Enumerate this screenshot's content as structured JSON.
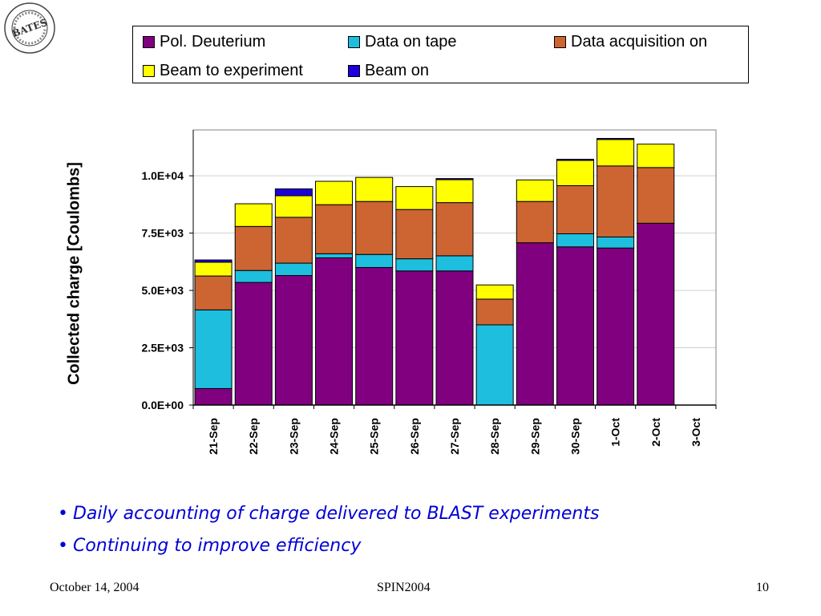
{
  "slide": {
    "footer_left": "October 14, 2004",
    "footer_center": "SPIN2004",
    "footer_right": "10"
  },
  "logo": {
    "icon": "bates-laboratory-seal-icon",
    "text": "LINEAR ACCELERATOR CENTER · BATES · MIDDLETON, MA"
  },
  "bullets": [
    {
      "text": "Daily accounting of charge delivered to BLAST experiments"
    },
    {
      "text": "Continuing to improve efficiency"
    }
  ],
  "chart_data": {
    "type": "bar",
    "stacked": true,
    "title": "",
    "xlabel": "",
    "ylabel": "Collected charge [Coulombs]",
    "ylim": [
      0,
      12000
    ],
    "yticks": [
      0,
      2500,
      5000,
      7500,
      10000
    ],
    "ytick_labels": [
      "0.0E+00",
      "2.5E+03",
      "5.0E+03",
      "7.5E+03",
      "1.0E+04"
    ],
    "grid": true,
    "legend_position": "top",
    "categories": [
      "21-Sep",
      "22-Sep",
      "23-Sep",
      "24-Sep",
      "25-Sep",
      "26-Sep",
      "27-Sep",
      "28-Sep",
      "29-Sep",
      "30-Sep",
      "1-Oct",
      "2-Oct",
      "3-Oct"
    ],
    "series": [
      {
        "name": "Pol. Deuterium",
        "color": "#800080",
        "values": [
          720,
          5350,
          5650,
          6420,
          6000,
          5850,
          5850,
          0,
          7080,
          6900,
          6850,
          7930,
          0
        ]
      },
      {
        "name": "Data on tape",
        "color": "#1ebedf",
        "values": [
          3430,
          520,
          540,
          180,
          570,
          530,
          660,
          3500,
          0,
          570,
          480,
          0,
          0
        ]
      },
      {
        "name": "Data acquisition on",
        "color": "#cd6532",
        "values": [
          1480,
          1920,
          2000,
          2140,
          2310,
          2150,
          2320,
          1120,
          1800,
          2100,
          3100,
          2430,
          0
        ]
      },
      {
        "name": "Beam to experiment",
        "color": "#ffff00",
        "values": [
          600,
          990,
          940,
          1020,
          1050,
          1000,
          1000,
          620,
          940,
          1100,
          1150,
          1020,
          0
        ]
      },
      {
        "name": "Beam on",
        "color": "#1e00dc",
        "values": [
          100,
          0,
          300,
          0,
          0,
          0,
          50,
          0,
          0,
          50,
          50,
          0,
          0
        ]
      }
    ]
  }
}
